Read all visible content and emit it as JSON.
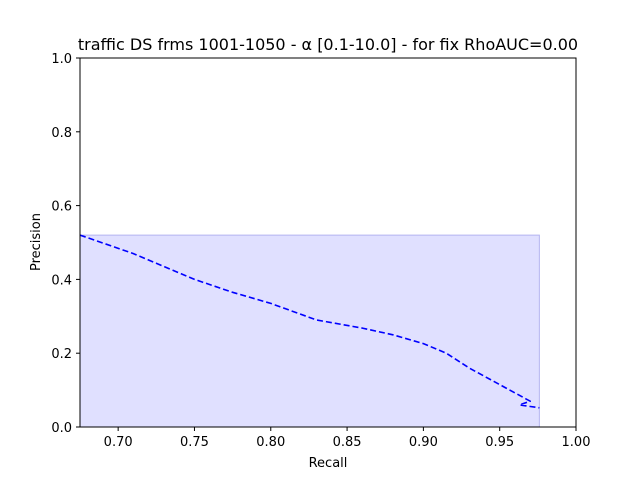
{
  "chart_data": {
    "type": "area",
    "title": "traffic DS frms 1001-1050 - α [0.1-10.0] - for fix RhoAUC=0.00",
    "xlabel": "Recall",
    "ylabel": "Precision",
    "xlim": [
      0.675,
      1.0
    ],
    "ylim": [
      0.0,
      1.0
    ],
    "x_ticks": [
      0.7,
      0.75,
      0.8,
      0.85,
      0.9,
      0.95,
      1.0
    ],
    "x_tick_labels": [
      "0.70",
      "0.75",
      "0.80",
      "0.85",
      "0.90",
      "0.95",
      "1.00"
    ],
    "y_ticks": [
      0.0,
      0.2,
      0.4,
      0.6,
      0.8,
      1.0
    ],
    "y_tick_labels": [
      "0.0",
      "0.2",
      "0.4",
      "0.6",
      "0.8",
      "1.0"
    ],
    "grid": false,
    "legend": "none",
    "series": [
      {
        "style": "dashed",
        "color": "#0000ff",
        "x": [
          0.675,
          0.71,
          0.75,
          0.775,
          0.8,
          0.83,
          0.86,
          0.88,
          0.9,
          0.915,
          0.93,
          0.95,
          0.97,
          0.963,
          0.976
        ],
        "y": [
          0.52,
          0.47,
          0.4,
          0.365,
          0.335,
          0.29,
          0.268,
          0.25,
          0.226,
          0.2,
          0.16,
          0.115,
          0.07,
          0.06,
          0.052
        ]
      }
    ],
    "fill": {
      "color": "#e0e0ff",
      "edge_color": "#b4b4f0",
      "x_range": [
        0.675,
        0.976
      ],
      "y_top": 0.52
    }
  }
}
